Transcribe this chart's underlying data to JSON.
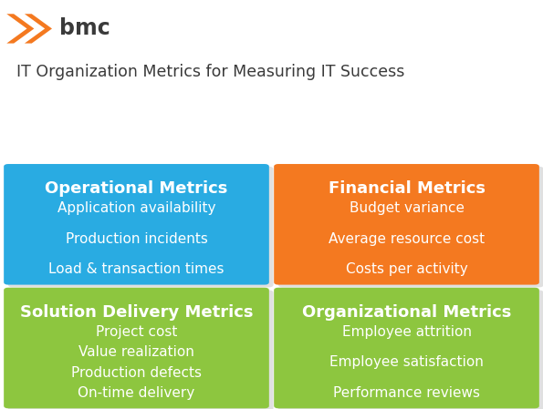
{
  "title": "IT Organization Metrics for Measuring IT Success",
  "title_fontsize": 12.5,
  "title_color": "#3a3a3a",
  "background_color": "#ffffff",
  "logo_text": "bmc",
  "logo_color": "#3a3a3a",
  "logo_arrow_color": "#f47920",
  "boxes": [
    {
      "label": "Operational Metrics",
      "items": [
        "Application availability",
        "Production incidents",
        "Load & transaction times"
      ],
      "color": "#29abe2",
      "col": 0,
      "row": 0
    },
    {
      "label": "Financial Metrics",
      "items": [
        "Budget variance",
        "Average resource cost",
        "Costs per activity"
      ],
      "color": "#f47920",
      "col": 1,
      "row": 0
    },
    {
      "label": "Solution Delivery Metrics",
      "items": [
        "Project cost",
        "Value realization",
        "Production defects",
        "On-time delivery"
      ],
      "color": "#8dc63f",
      "col": 0,
      "row": 1
    },
    {
      "label": "Organizational Metrics",
      "items": [
        "Employee attrition",
        "Employee satisfaction",
        "Performance reviews"
      ],
      "color": "#8dc63f",
      "col": 1,
      "row": 1
    }
  ],
  "label_fontsize": 13,
  "item_fontsize": 11,
  "text_color": "#ffffff",
  "shadow_color": "#cccccc",
  "shadow_alpha": 0.6
}
